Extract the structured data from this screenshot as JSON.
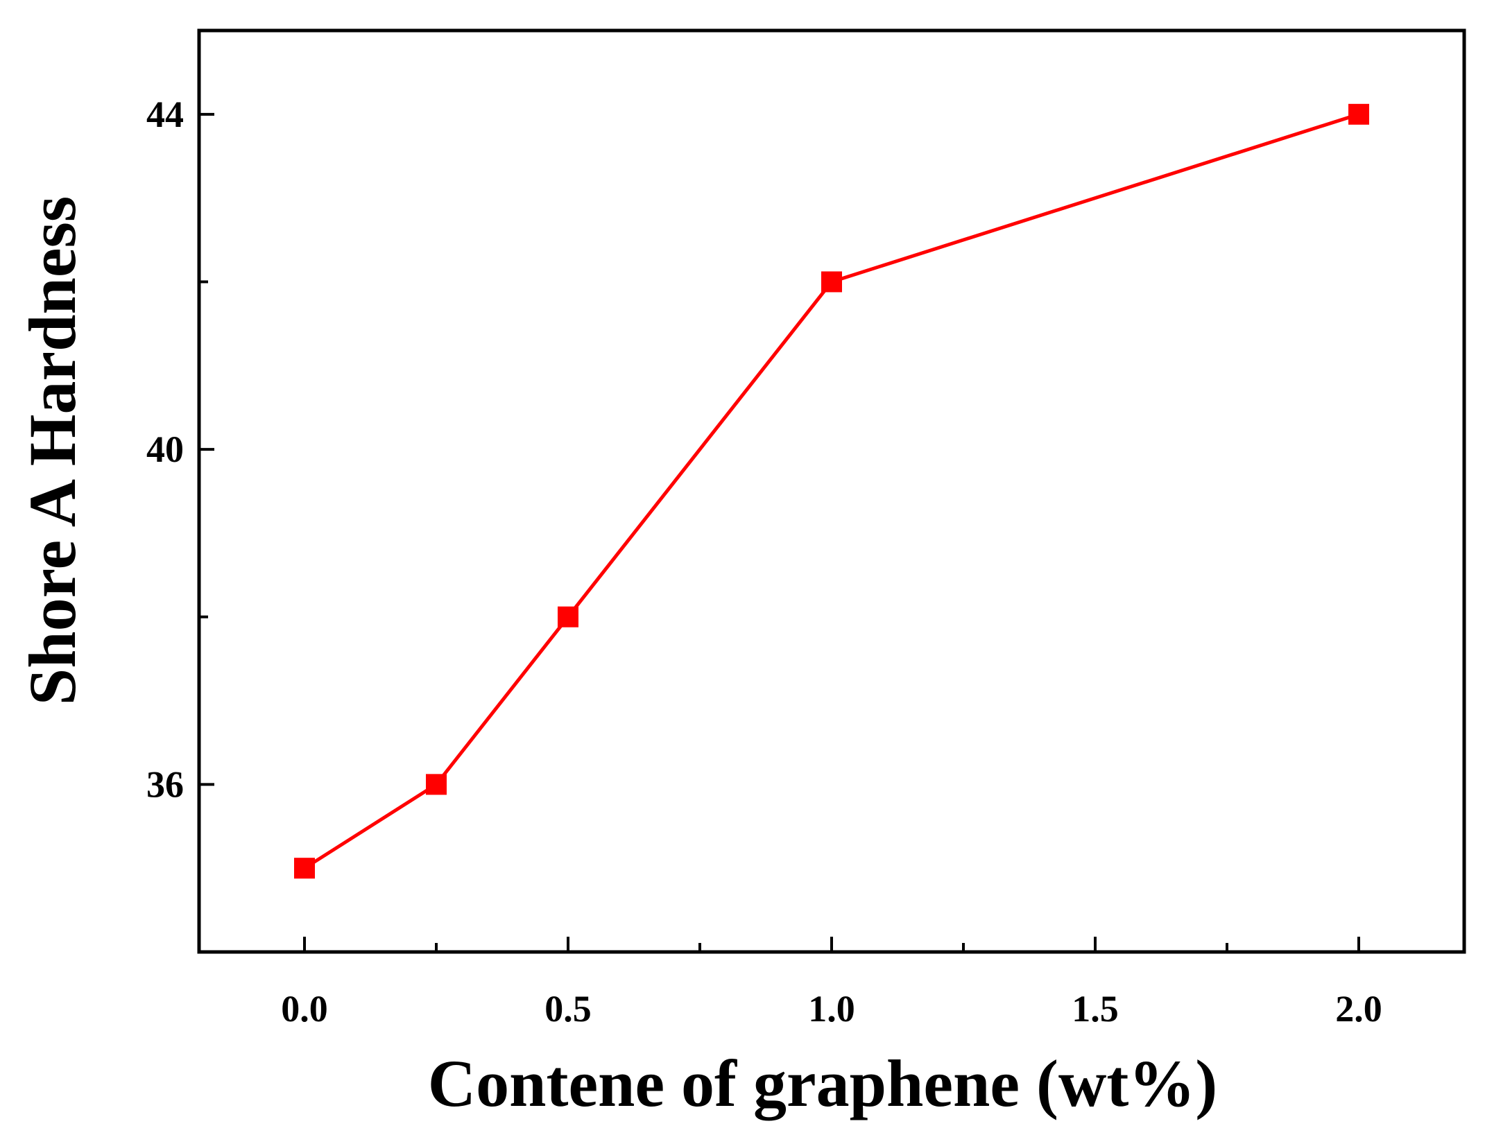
{
  "chart_data": {
    "type": "line",
    "xlabel": "Contene of graphene (wt%)",
    "ylabel": "Shore A Hardness",
    "xlim": [
      -0.2,
      2.2
    ],
    "ylim": [
      34,
      45
    ],
    "xticks": [
      0.0,
      0.25,
      0.5,
      0.75,
      1.0,
      1.25,
      1.5,
      1.75,
      2.0
    ],
    "xtick_labels": [
      "0.0",
      "",
      "0.5",
      "",
      "1.0",
      "",
      "1.5",
      "",
      "2.0"
    ],
    "yticks": [
      36,
      38,
      40,
      42,
      44
    ],
    "ytick_labels": [
      "36",
      "",
      "40",
      "",
      "44"
    ],
    "grid": false,
    "series": [
      {
        "color": "#ff0000",
        "marker": "square",
        "x": [
          0.0,
          0.25,
          0.5,
          1.0,
          2.0
        ],
        "y": [
          35.0,
          36.0,
          38.0,
          42.0,
          44.0
        ]
      }
    ]
  }
}
